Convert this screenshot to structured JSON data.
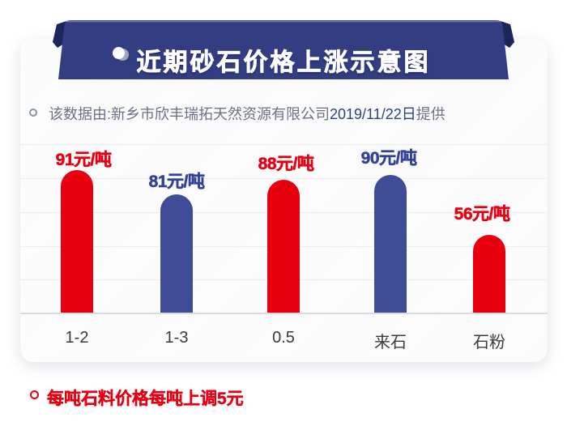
{
  "banner": {
    "title": "近期砂石价格上涨示意图",
    "bg_color": "#323d82",
    "fold_color": "#1d2659"
  },
  "subtitle": {
    "prefix": "该数据由:新乡市欣丰瑞拓天然资源有限公司",
    "date": "2019/11/22日",
    "suffix": "提供"
  },
  "chart_data": {
    "type": "bar",
    "categories": [
      "1-2",
      "1-3",
      "0.5",
      "来石",
      "石粉"
    ],
    "values": [
      91,
      81,
      88,
      90,
      56
    ],
    "unit": "元/吨",
    "value_labels": [
      "91元/吨",
      "81元/吨",
      "88元/吨",
      "90元/吨",
      "56元/吨"
    ],
    "bar_colors": [
      "#e8000f",
      "#3f4d98",
      "#e8000f",
      "#3f4d98",
      "#e8000f"
    ],
    "label_colors": [
      "#e60012",
      "#33429a",
      "#e60012",
      "#33429a",
      "#e60012"
    ],
    "title": "近期砂石价格上涨示意图",
    "xlabel": "",
    "ylabel": "",
    "ylim": [
      0,
      100
    ],
    "grid": true,
    "legend": false
  },
  "footnote": {
    "text": "每吨石料价格每吨上调5元",
    "color": "#e60012"
  }
}
